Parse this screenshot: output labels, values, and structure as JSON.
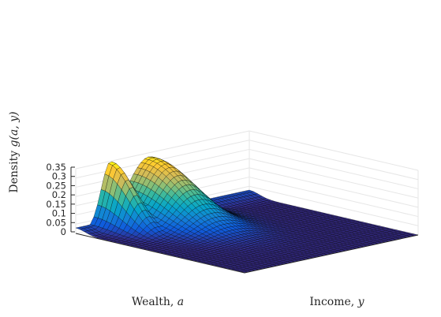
{
  "chart_data": {
    "type": "surface",
    "title": "",
    "xlabel": "Wealth, a",
    "ylabel": "Income, y",
    "zlabel": "Density g(a, y)",
    "axis_labels": {
      "x": {
        "text": "Wealth, ",
        "var": "a"
      },
      "y": {
        "text": "Income, ",
        "var": "y"
      },
      "z": {
        "text": "Density ",
        "var": "g(a, y)"
      }
    },
    "zlim": [
      0,
      0.35
    ],
    "z_ticks": [
      "0",
      "0.05",
      "0.1",
      "0.15",
      "0.2",
      "0.25",
      "0.3",
      "0.35"
    ],
    "z_tick_values": [
      0,
      0.05,
      0.1,
      0.15,
      0.2,
      0.25,
      0.3,
      0.35
    ],
    "grid": true,
    "colormap": "parula",
    "colormap_stops": [
      "#352a87",
      "#0f5cdd",
      "#1481d6",
      "#06a4ca",
      "#2eb7a4",
      "#87bf77",
      "#d1bb59",
      "#fec832",
      "#f9fb0e"
    ],
    "edge_color": "#000000",
    "peaks": [
      {
        "description": "narrow ridge near low income",
        "max_density": 0.35
      },
      {
        "description": "broad hump",
        "max_density": 0.33
      }
    ]
  }
}
